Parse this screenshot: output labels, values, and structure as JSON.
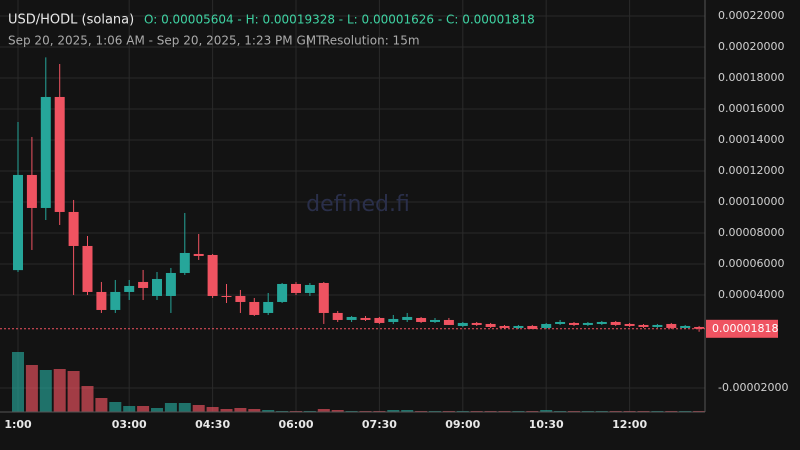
{
  "chart_data": {
    "type": "candlestick",
    "title": "USD/HODL (solana)",
    "ohlc_summary": "O: 0.00005604 - H: 0.00019328 - L: 0.00001626 - C: 0.00001818",
    "subtitle": "Sep 20, 2025, 1:06 AM - Sep 20, 2025, 1:23 PM GMT",
    "separator": "|",
    "resolution": "Resolution: 15m",
    "watermark": "defined.fi",
    "up_color": "#26a69a",
    "down_color": "#ef5361",
    "categories": [
      "1:00",
      null,
      null,
      null,
      null,
      null,
      null,
      null,
      "03:00",
      null,
      null,
      null,
      null,
      null,
      "04:30",
      null,
      null,
      null,
      null,
      null,
      "06:00",
      null,
      null,
      null,
      null,
      null,
      "07:30",
      null,
      null,
      null,
      null,
      null,
      "09:00",
      null,
      null,
      null,
      null,
      null,
      "10:30",
      null,
      null,
      null,
      null,
      null,
      "12:00",
      null,
      null,
      null,
      null,
      null
    ],
    "open": [
      5.604e-05,
      0.00011742,
      9.613e-05,
      0.00016774,
      9.355e-05,
      7.161e-05,
      4.194e-05,
      3.032e-05,
      4.194e-05,
      4.839e-05,
      3.935e-05,
      3.935e-05,
      5.419e-05,
      6.645e-05,
      6.58e-05,
      3.935e-05,
      3.935e-05,
      3.548e-05,
      2.839e-05,
      3.548e-05,
      4.71e-05,
      4.129e-05,
      4.774e-05,
      2.839e-05,
      2.387e-05,
      2.516e-05,
      2.516e-05,
      2.258e-05,
      2.387e-05,
      2.516e-05,
      2.258e-05,
      2.387e-05,
      2e-05,
      2.194e-05,
      2.129e-05,
      2e-05,
      1.871e-05,
      2e-05,
      1.871e-05,
      2.129e-05,
      2.194e-05,
      2.065e-05,
      2.129e-05,
      2.258e-05,
      2.129e-05,
      2.065e-05,
      1.935e-05,
      2.129e-05,
      1.871e-05,
      1.935e-05
    ],
    "high": [
      0.00015161,
      0.00014194,
      0.00019328,
      0.00018903,
      0.00010129,
      7.806e-05,
      4.839e-05,
      4.968e-05,
      4.968e-05,
      5.613e-05,
      5.484e-05,
      5.742e-05,
      9.29e-05,
      7.935e-05,
      6.645e-05,
      4.71e-05,
      4.323e-05,
      3.806e-05,
      4.129e-05,
      4.774e-05,
      4.839e-05,
      4.774e-05,
      4.839e-05,
      2.968e-05,
      2.645e-05,
      2.645e-05,
      2.581e-05,
      2.71e-05,
      2.839e-05,
      2.581e-05,
      2.516e-05,
      2.516e-05,
      2.258e-05,
      2.258e-05,
      2.194e-05,
      2.065e-05,
      2.065e-05,
      2.065e-05,
      2.194e-05,
      2.387e-05,
      2.258e-05,
      2.258e-05,
      2.323e-05,
      2.323e-05,
      2.194e-05,
      2.129e-05,
      2.129e-05,
      2.194e-05,
      2.065e-05,
      2e-05
    ],
    "low": [
      5.484e-05,
      6.903e-05,
      8.839e-05,
      8.516e-05,
      4e-05,
      4e-05,
      2.839e-05,
      2.839e-05,
      3.677e-05,
      3.677e-05,
      3.677e-05,
      2.839e-05,
      5.29e-05,
      6.258e-05,
      3.806e-05,
      3.484e-05,
      2.839e-05,
      2.645e-05,
      2.71e-05,
      3.484e-05,
      4e-05,
      3.935e-05,
      2.129e-05,
      2.258e-05,
      2.258e-05,
      2.323e-05,
      2.129e-05,
      2.129e-05,
      2.258e-05,
      2.194e-05,
      2.194e-05,
      2.065e-05,
      1.935e-05,
      2e-05,
      1.871e-05,
      1.806e-05,
      1.806e-05,
      1.806e-05,
      1.806e-05,
      2.065e-05,
      2e-05,
      2e-05,
      2.065e-05,
      2e-05,
      1.935e-05,
      1.871e-05,
      1.871e-05,
      1.806e-05,
      1.806e-05,
      1.626e-05
    ],
    "close": [
      0.00011742,
      9.613e-05,
      0.00016774,
      9.355e-05,
      7.161e-05,
      4.194e-05,
      3.032e-05,
      4.194e-05,
      4.581e-05,
      4.452e-05,
      5.032e-05,
      5.419e-05,
      6.71e-05,
      6.516e-05,
      3.935e-05,
      3.871e-05,
      3.548e-05,
      2.71e-05,
      3.548e-05,
      4.71e-05,
      4.129e-05,
      4.645e-05,
      2.839e-05,
      2.387e-05,
      2.581e-05,
      2.387e-05,
      2.194e-05,
      2.452e-05,
      2.581e-05,
      2.258e-05,
      2.387e-05,
      2.065e-05,
      2.194e-05,
      2.065e-05,
      1.935e-05,
      1.871e-05,
      2e-05,
      1.806e-05,
      2.129e-05,
      2.258e-05,
      2.065e-05,
      2.194e-05,
      2.258e-05,
      2.065e-05,
      2e-05,
      1.935e-05,
      2.065e-05,
      1.871e-05,
      2e-05,
      1.818e-05
    ],
    "volume": [
      60,
      47,
      42,
      43,
      41,
      26,
      14,
      10,
      6,
      6,
      4,
      9,
      9,
      7,
      5,
      3,
      4,
      3,
      2,
      1,
      1,
      1,
      3,
      2,
      1,
      1,
      1,
      2,
      2,
      1,
      1,
      1,
      1,
      1,
      1,
      1,
      1,
      1,
      2,
      1,
      1,
      1,
      1,
      1,
      1,
      1,
      1,
      1,
      1,
      1
    ],
    "volume_ylim": [
      0,
      60
    ],
    "ylim": [
      -3.55e-05,
      0.0002303
    ],
    "yticks": [
      {
        "value": 0.00022,
        "label": "0.00022000"
      },
      {
        "value": 0.0002,
        "label": "0.00020000"
      },
      {
        "value": 0.00018,
        "label": "0.00018000"
      },
      {
        "value": 0.00016,
        "label": "0.00016000"
      },
      {
        "value": 0.00014,
        "label": "0.00014000"
      },
      {
        "value": 0.00012,
        "label": "0.00012000"
      },
      {
        "value": 0.0001,
        "label": "0.00010000"
      },
      {
        "value": 8e-05,
        "label": "0.00008000"
      },
      {
        "value": 6e-05,
        "label": "0.00006000"
      },
      {
        "value": 4e-05,
        "label": "0.00004000"
      },
      {
        "value": -2e-05,
        "label": "-0.00002000"
      }
    ],
    "last_price": {
      "value": 1.818e-05,
      "label": "0.00001818"
    },
    "grid": true
  }
}
